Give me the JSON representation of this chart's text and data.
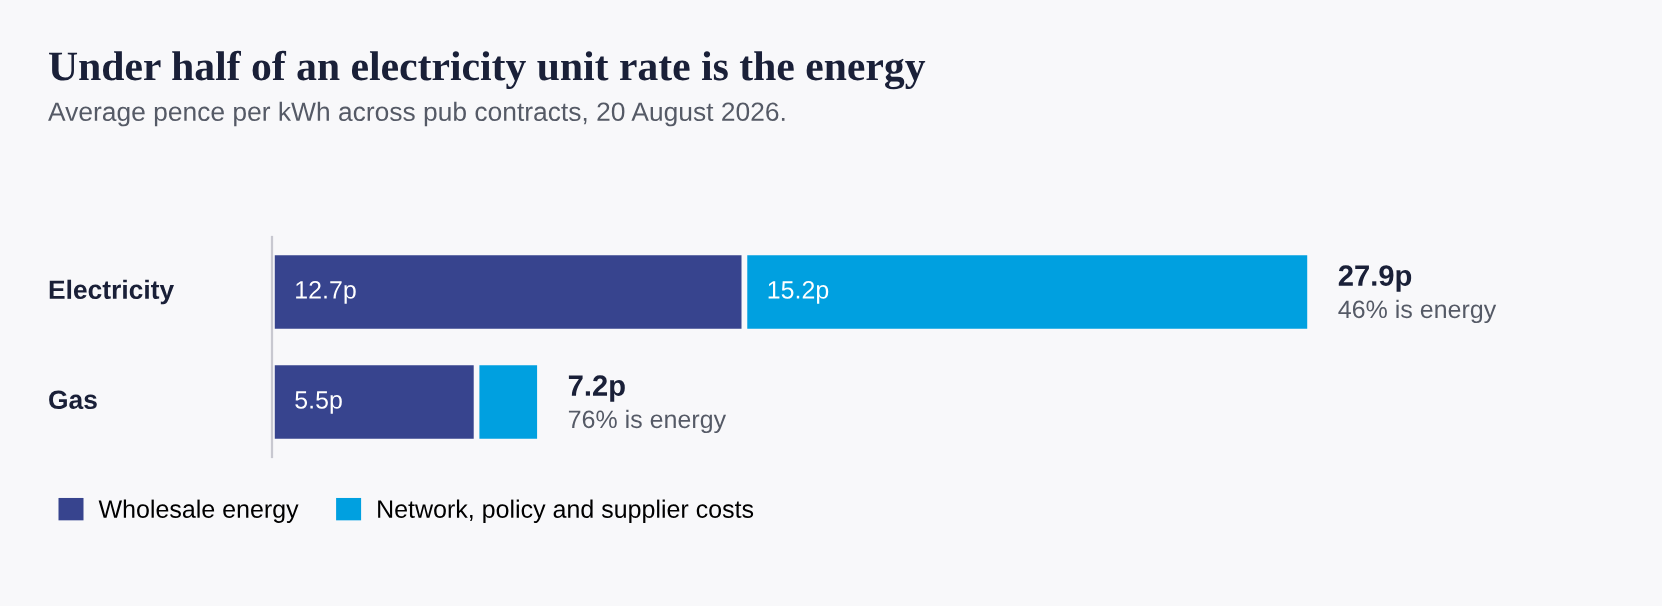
{
  "chart_data": {
    "type": "bar",
    "orientation": "horizontal",
    "stacked": true,
    "title": "Under half of an electricity unit rate is the energy",
    "subtitle": "Average pence per kWh across pub contracts, 20 August 2026.",
    "categories": [
      "Electricity",
      "Gas"
    ],
    "series": [
      {
        "name": "Wholesale energy",
        "color": "#37448e",
        "values": [
          12.7,
          5.5
        ],
        "value_labels": [
          "12.7p",
          "5.5p"
        ]
      },
      {
        "name": "Network, policy and supplier costs",
        "color": "#00a0e0",
        "values": [
          15.2,
          1.7
        ],
        "value_labels": [
          "15.2p",
          null
        ]
      }
    ],
    "totals": [
      "27.9p",
      "7.2p"
    ],
    "annotations": [
      {
        "text": "46% is energy",
        "x": 27.9,
        "y": "Electricity"
      },
      {
        "text": "76% is energy",
        "x": 7.2,
        "y": "Gas"
      }
    ],
    "legend": "bottom left"
  }
}
